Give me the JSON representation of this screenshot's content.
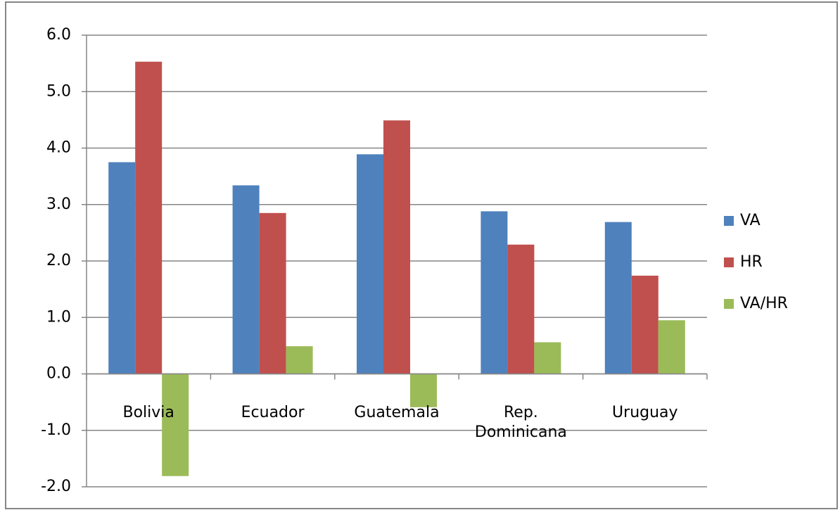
{
  "chart_data": {
    "type": "bar",
    "categories": [
      "Bolivia",
      "Ecuador",
      "Guatemala",
      "Rep. Dominicana",
      "Uruguay"
    ],
    "series": [
      {
        "name": "VA",
        "color": "#4f81bd",
        "values": [
          3.75,
          3.34,
          3.89,
          2.88,
          2.69
        ]
      },
      {
        "name": "HR",
        "color": "#c0504d",
        "values": [
          5.53,
          2.85,
          4.49,
          2.29,
          1.74
        ]
      },
      {
        "name": "VA/HR",
        "color": "#9bbb59",
        "values": [
          -1.81,
          0.49,
          -0.59,
          0.56,
          0.95
        ]
      }
    ],
    "ylim": [
      -2,
      6
    ],
    "yticks": [
      {
        "value": -2,
        "label": "-2.0"
      },
      {
        "value": -1,
        "label": "-1.0"
      },
      {
        "value": 0,
        "label": "0.0"
      },
      {
        "value": 1,
        "label": "1.0"
      },
      {
        "value": 2,
        "label": "2.0"
      },
      {
        "value": 3,
        "label": "3.0"
      },
      {
        "value": 4,
        "label": "4.0"
      },
      {
        "value": 5,
        "label": "5.0"
      },
      {
        "value": 6,
        "label": "6.0"
      }
    ],
    "grid": true,
    "legend": "right"
  }
}
